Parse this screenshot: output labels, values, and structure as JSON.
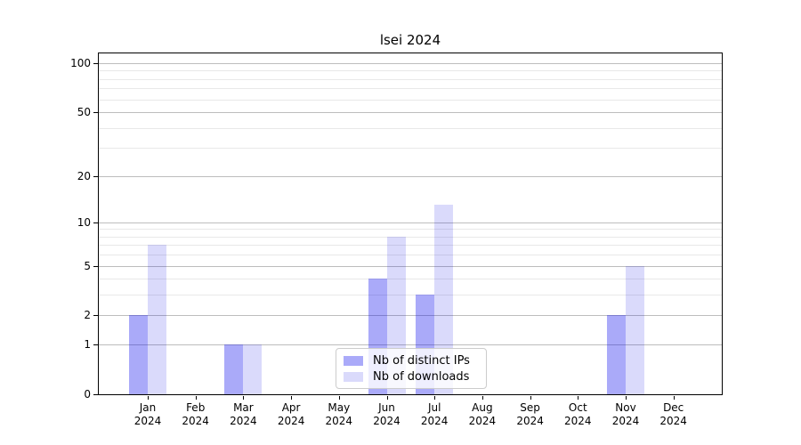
{
  "chart_data": {
    "type": "bar",
    "title": "lsei 2024",
    "categories": [
      "Jan 2024",
      "Feb 2024",
      "Mar 2024",
      "Apr 2024",
      "May 2024",
      "Jun 2024",
      "Jul 2024",
      "Aug 2024",
      "Sep 2024",
      "Oct 2024",
      "Nov 2024",
      "Dec 2024"
    ],
    "series": [
      {
        "name": "Nb of distinct IPs",
        "values": [
          2,
          0,
          1,
          0,
          0,
          4,
          3,
          0,
          0,
          0,
          2,
          0
        ],
        "fill": "rgba(0,0,238,0.335)",
        "fill_hex_on_white": "#aaaaf9"
      },
      {
        "name": "Nb of downloads",
        "values": [
          7,
          0,
          1,
          0,
          0,
          8,
          13,
          0,
          0,
          0,
          5,
          0
        ],
        "fill": "rgba(0,0,224,0.145)",
        "fill_hex_on_white": "#dadaf9"
      }
    ],
    "xlabel": "",
    "ylabel": "",
    "y_axis": {
      "scale": "log10(1+x)",
      "major_ticks": [
        0,
        1,
        2,
        5,
        10,
        20,
        50,
        100
      ],
      "minor_gridlines": [
        3,
        4,
        6,
        7,
        8,
        9,
        30,
        40,
        60,
        70,
        80,
        90
      ],
      "ylim": [
        0,
        116
      ]
    },
    "legend": {
      "position": "lower center",
      "entries": [
        "Nb of distinct IPs",
        "Nb of downloads"
      ]
    },
    "grid": {
      "on": true,
      "major_color": "#bdbdbd",
      "minor_color": "#e8e8e8"
    },
    "colors": {
      "spine": "#000000",
      "text": "#000000",
      "background": "#ffffff"
    }
  }
}
